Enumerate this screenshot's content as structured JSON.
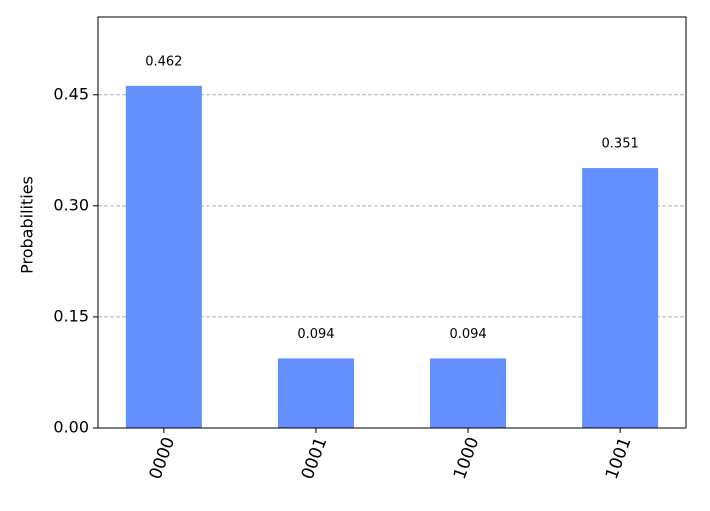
{
  "chart_data": {
    "type": "bar",
    "y_label": "Probabilities",
    "categories": [
      "0000",
      "0001",
      "1000",
      "1001"
    ],
    "values": [
      0.462,
      0.094,
      0.094,
      0.351
    ],
    "color": "#648fff",
    "ylim": [
      0,
      0.555
    ],
    "yticks": [
      {
        "value": 0,
        "label": "0.00"
      },
      0.15,
      {
        "value": 0.3,
        "label": "0.30"
      },
      0.45
    ],
    "grid": true
  }
}
